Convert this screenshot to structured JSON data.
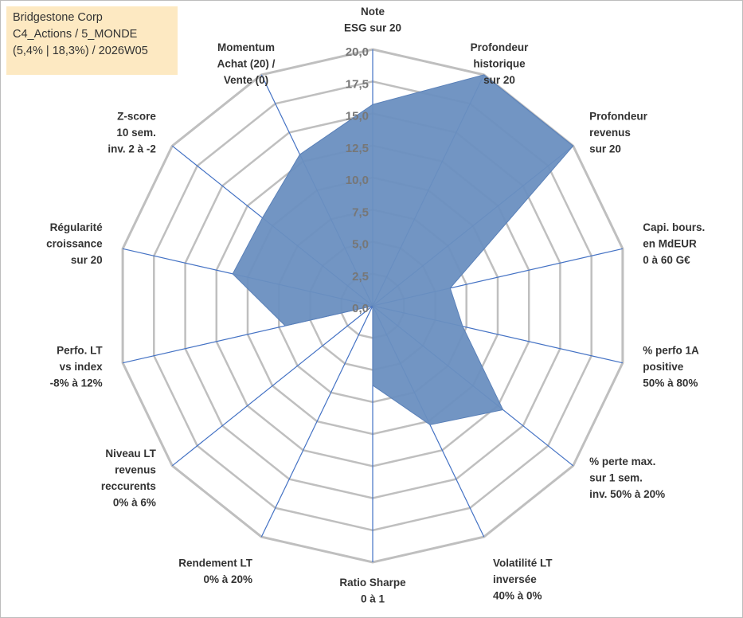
{
  "title_box": {
    "line1": "Bridgestone Corp",
    "line2": "C4_Actions / 5_MONDE",
    "line3": "(5,4% | 18,3%) / 2026W05"
  },
  "colors": {
    "fill": "#6a8fc0",
    "stroke": "#5a80b8",
    "spoke": "#4472c4",
    "grid": "#bfbfbf",
    "title_bg": "#fde9c2"
  },
  "chart_data": {
    "type": "radar",
    "title": "Bridgestone Corp",
    "rlim": [
      0,
      20
    ],
    "ticks": [
      "0,0",
      "2,5",
      "5,0",
      "7,5",
      "10,0",
      "12,5",
      "15,0",
      "17,5",
      "20,0"
    ],
    "tick_values": [
      0,
      2.5,
      5,
      7.5,
      10,
      12.5,
      15,
      17.5,
      20
    ],
    "axes": [
      {
        "lines": [
          "Note",
          "ESG sur 20"
        ]
      },
      {
        "lines": [
          "Profondeur",
          "historique",
          "sur 20"
        ]
      },
      {
        "lines": [
          "Profondeur",
          "revenus",
          "sur 20"
        ]
      },
      {
        "lines": [
          "Capi. bours.",
          "en MdEUR",
          "0 à 60 G€"
        ]
      },
      {
        "lines": [
          "% perfo 1A",
          "positive",
          "50% à 80%"
        ]
      },
      {
        "lines": [
          "% perte max.",
          "sur 1 sem.",
          "inv. 50% à 20%"
        ]
      },
      {
        "lines": [
          "Volatilité LT",
          "inversée",
          "40% à 0%"
        ]
      },
      {
        "lines": [
          "Ratio Sharpe",
          "0 à 1"
        ]
      },
      {
        "lines": [
          "Rendement LT",
          "0% à 20%"
        ]
      },
      {
        "lines": [
          "Niveau LT",
          "revenus",
          "reccurents",
          "0% à 6%"
        ]
      },
      {
        "lines": [
          "Perfo. LT",
          "vs index",
          "-8% à 12%"
        ]
      },
      {
        "lines": [
          "Régularité",
          "croissance",
          "sur 20"
        ]
      },
      {
        "lines": [
          "Z-score",
          "10 sem.",
          "inv. 2 à -2"
        ]
      },
      {
        "lines": [
          "Momentum",
          "Achat (20) /",
          "Vente (0)"
        ]
      }
    ],
    "series": [
      {
        "name": "Bridgestone Corp",
        "values": [
          15.7,
          20,
          20,
          6.2,
          7.2,
          13.0,
          10.3,
          6.2,
          0,
          0,
          7.0,
          11.2,
          11.0,
          13.1
        ]
      }
    ]
  }
}
